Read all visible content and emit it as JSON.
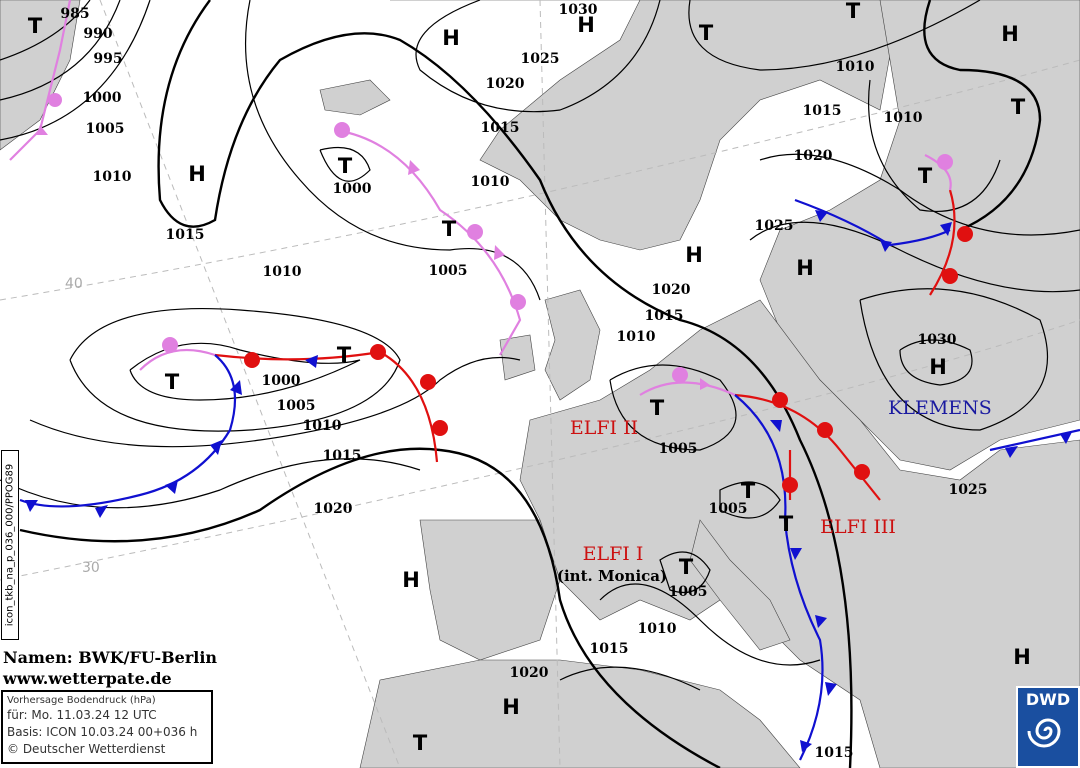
{
  "map": {
    "colors": {
      "land": "#d0d0d0",
      "sea": "#ffffff",
      "isobar": "#000000",
      "warm_front": "#e01010",
      "cold_front": "#1010d0",
      "occlusion": "#e080e0",
      "front_name_red": "#cc1111",
      "front_name_blue": "#1a1aa0"
    },
    "isobar_labels": [
      "985",
      "990",
      "995",
      "1000",
      "1005",
      "1010",
      "1015",
      "1010",
      "1000",
      "1005",
      "1010",
      "1015",
      "1020",
      "1025",
      "1030",
      "1010",
      "1015",
      "1010",
      "1020",
      "1025",
      "1020",
      "1015",
      "1010",
      "1030",
      "1000",
      "1005",
      "1010",
      "1015",
      "1020",
      "1005",
      "1005",
      "1025",
      "1005",
      "1010",
      "1015",
      "1020",
      "1015"
    ],
    "pressure_centers": [
      "T",
      "H",
      "H",
      "T",
      "T",
      "H",
      "T",
      "H",
      "T",
      "T",
      "T",
      "H",
      "H",
      "H",
      "T",
      "T",
      "T",
      "T",
      "T",
      "T",
      "H",
      "H",
      "T",
      "H"
    ],
    "front_names": {
      "elfi2": "ELFI II",
      "elfi1": "ELFI I",
      "monica": "(int. Monica)",
      "elfi3": "ELFI III",
      "klemens": "KLEMENS"
    },
    "latitude_labels": [
      "40",
      "30"
    ]
  },
  "credits": {
    "names": "Namen: BWK/FU-Berlin",
    "url": "www.wetterpate.de"
  },
  "info": {
    "title": "Vorhersage Bodendruck (hPa)",
    "valid": "für:  Mo. 11.03.24  12 UTC",
    "basis": "Basis: ICON  10.03.24 00+036 h",
    "copyright": "© Deutscher Wetterdienst"
  },
  "product_code": "icon_tkb_na_p_036_000/PPOG89",
  "logo": {
    "text": "DWD"
  }
}
